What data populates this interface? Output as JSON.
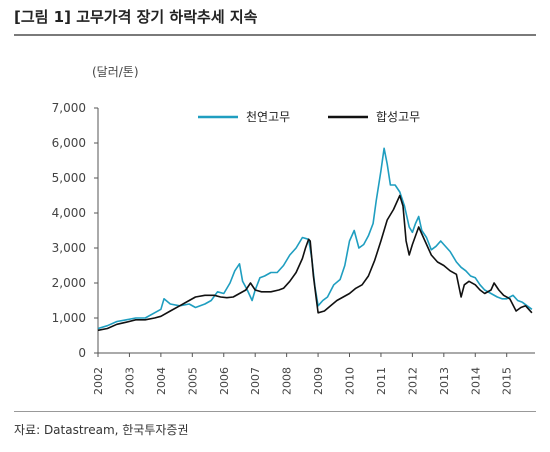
{
  "title": "[그림 1] 고무가격 장기 하락추세 지속",
  "source": "자료: Datastream, 한국투자증권",
  "chart_data": {
    "type": "line",
    "unit_label": "(달러/톤)",
    "ylim": [
      0,
      7000
    ],
    "yticks": [
      0,
      1000,
      2000,
      3000,
      4000,
      5000,
      6000,
      7000
    ],
    "ytick_labels": [
      "0",
      "1,000",
      "2,000",
      "3,000",
      "4,000",
      "5,000",
      "6,000",
      "7,000"
    ],
    "xlim": [
      2002.0,
      2015.9
    ],
    "xticks": [
      "2002",
      "2003",
      "2004",
      "2005",
      "2006",
      "2007",
      "2008",
      "2009",
      "2010",
      "2011",
      "2012",
      "2013",
      "2014",
      "2015"
    ],
    "legend_position": "top-right",
    "series": [
      {
        "name": "천연고무",
        "color": "#1f9ec0",
        "points": [
          [
            2002.0,
            700
          ],
          [
            2002.3,
            780
          ],
          [
            2002.6,
            900
          ],
          [
            2002.9,
            950
          ],
          [
            2003.2,
            1000
          ],
          [
            2003.5,
            1000
          ],
          [
            2003.8,
            1150
          ],
          [
            2004.0,
            1250
          ],
          [
            2004.1,
            1550
          ],
          [
            2004.3,
            1400
          ],
          [
            2004.6,
            1350
          ],
          [
            2004.9,
            1400
          ],
          [
            2005.1,
            1300
          ],
          [
            2005.4,
            1400
          ],
          [
            2005.6,
            1500
          ],
          [
            2005.8,
            1750
          ],
          [
            2006.0,
            1700
          ],
          [
            2006.2,
            2000
          ],
          [
            2006.35,
            2350
          ],
          [
            2006.5,
            2550
          ],
          [
            2006.6,
            2050
          ],
          [
            2006.75,
            1800
          ],
          [
            2006.9,
            1500
          ],
          [
            2007.0,
            1800
          ],
          [
            2007.15,
            2150
          ],
          [
            2007.3,
            2200
          ],
          [
            2007.5,
            2300
          ],
          [
            2007.7,
            2300
          ],
          [
            2007.9,
            2500
          ],
          [
            2008.1,
            2800
          ],
          [
            2008.3,
            3000
          ],
          [
            2008.5,
            3300
          ],
          [
            2008.7,
            3250
          ],
          [
            2008.8,
            2700
          ],
          [
            2008.9,
            1900
          ],
          [
            2009.0,
            1350
          ],
          [
            2009.15,
            1500
          ],
          [
            2009.3,
            1600
          ],
          [
            2009.5,
            1950
          ],
          [
            2009.7,
            2100
          ],
          [
            2009.85,
            2500
          ],
          [
            2010.0,
            3200
          ],
          [
            2010.15,
            3500
          ],
          [
            2010.3,
            3000
          ],
          [
            2010.45,
            3100
          ],
          [
            2010.6,
            3350
          ],
          [
            2010.75,
            3700
          ],
          [
            2010.85,
            4350
          ],
          [
            2011.0,
            5200
          ],
          [
            2011.1,
            5850
          ],
          [
            2011.2,
            5400
          ],
          [
            2011.3,
            4800
          ],
          [
            2011.45,
            4800
          ],
          [
            2011.6,
            4600
          ],
          [
            2011.75,
            4200
          ],
          [
            2011.9,
            3600
          ],
          [
            2012.0,
            3450
          ],
          [
            2012.1,
            3700
          ],
          [
            2012.2,
            3900
          ],
          [
            2012.3,
            3500
          ],
          [
            2012.45,
            3300
          ],
          [
            2012.6,
            2950
          ],
          [
            2012.75,
            3050
          ],
          [
            2012.9,
            3200
          ],
          [
            2013.0,
            3100
          ],
          [
            2013.2,
            2900
          ],
          [
            2013.4,
            2600
          ],
          [
            2013.55,
            2450
          ],
          [
            2013.7,
            2350
          ],
          [
            2013.85,
            2200
          ],
          [
            2014.0,
            2150
          ],
          [
            2014.15,
            1950
          ],
          [
            2014.3,
            1800
          ],
          [
            2014.5,
            1700
          ],
          [
            2014.7,
            1600
          ],
          [
            2014.85,
            1550
          ],
          [
            2015.0,
            1550
          ],
          [
            2015.2,
            1650
          ],
          [
            2015.35,
            1500
          ],
          [
            2015.5,
            1450
          ],
          [
            2015.65,
            1350
          ],
          [
            2015.8,
            1250
          ]
        ]
      },
      {
        "name": "합성고무",
        "color": "#111111",
        "points": [
          [
            2002.0,
            650
          ],
          [
            2002.3,
            700
          ],
          [
            2002.6,
            820
          ],
          [
            2002.9,
            880
          ],
          [
            2003.2,
            950
          ],
          [
            2003.5,
            950
          ],
          [
            2003.8,
            1000
          ],
          [
            2004.0,
            1050
          ],
          [
            2004.3,
            1200
          ],
          [
            2004.6,
            1350
          ],
          [
            2004.9,
            1500
          ],
          [
            2005.1,
            1600
          ],
          [
            2005.4,
            1650
          ],
          [
            2005.7,
            1650
          ],
          [
            2005.9,
            1600
          ],
          [
            2006.1,
            1580
          ],
          [
            2006.3,
            1600
          ],
          [
            2006.5,
            1700
          ],
          [
            2006.7,
            1800
          ],
          [
            2006.85,
            2000
          ],
          [
            2007.0,
            1800
          ],
          [
            2007.2,
            1750
          ],
          [
            2007.5,
            1750
          ],
          [
            2007.75,
            1800
          ],
          [
            2007.9,
            1850
          ],
          [
            2008.1,
            2050
          ],
          [
            2008.3,
            2300
          ],
          [
            2008.5,
            2700
          ],
          [
            2008.6,
            3000
          ],
          [
            2008.7,
            3250
          ],
          [
            2008.75,
            3200
          ],
          [
            2008.85,
            2200
          ],
          [
            2008.95,
            1500
          ],
          [
            2009.0,
            1150
          ],
          [
            2009.2,
            1200
          ],
          [
            2009.4,
            1350
          ],
          [
            2009.6,
            1500
          ],
          [
            2009.8,
            1600
          ],
          [
            2010.0,
            1700
          ],
          [
            2010.2,
            1850
          ],
          [
            2010.4,
            1950
          ],
          [
            2010.6,
            2200
          ],
          [
            2010.8,
            2650
          ],
          [
            2011.0,
            3200
          ],
          [
            2011.2,
            3800
          ],
          [
            2011.4,
            4100
          ],
          [
            2011.6,
            4500
          ],
          [
            2011.7,
            4200
          ],
          [
            2011.8,
            3200
          ],
          [
            2011.9,
            2800
          ],
          [
            2012.0,
            3100
          ],
          [
            2012.2,
            3600
          ],
          [
            2012.4,
            3200
          ],
          [
            2012.6,
            2800
          ],
          [
            2012.8,
            2600
          ],
          [
            2013.0,
            2500
          ],
          [
            2013.2,
            2350
          ],
          [
            2013.4,
            2250
          ],
          [
            2013.55,
            1600
          ],
          [
            2013.65,
            1950
          ],
          [
            2013.8,
            2050
          ],
          [
            2014.0,
            1950
          ],
          [
            2014.15,
            1800
          ],
          [
            2014.3,
            1700
          ],
          [
            2014.5,
            1800
          ],
          [
            2014.6,
            2000
          ],
          [
            2014.75,
            1800
          ],
          [
            2014.9,
            1650
          ],
          [
            2015.1,
            1550
          ],
          [
            2015.3,
            1200
          ],
          [
            2015.45,
            1300
          ],
          [
            2015.6,
            1350
          ],
          [
            2015.8,
            1150
          ]
        ]
      }
    ]
  }
}
